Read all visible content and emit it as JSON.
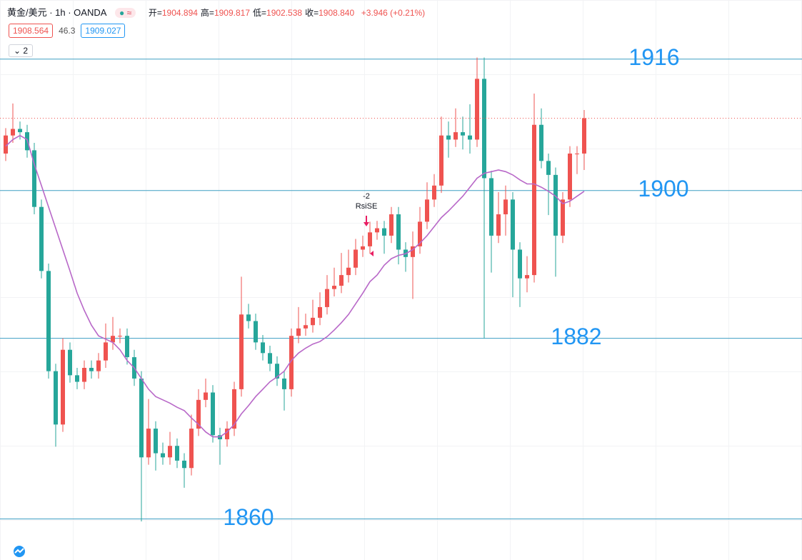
{
  "header": {
    "symbol": "黄金/美元 · 1h · OANDA",
    "ohlc": [
      {
        "label": "开=",
        "value": "1904.894"
      },
      {
        "label": "高=",
        "value": "1909.817"
      },
      {
        "label": "低=",
        "value": "1902.538"
      },
      {
        "label": "收=",
        "value": "1908.840"
      }
    ],
    "change": "+3.946 (+0.21%)",
    "bid": "1908.564",
    "spread": "46.3",
    "ask": "1909.027",
    "indicator_count": "2"
  },
  "chart_data": {
    "type": "candlestick",
    "ylim": [
      1855,
      1923.2
    ],
    "up_color": "#ef5350",
    "down_color": "#26a69a",
    "open": [
      1904.5,
      1906.7,
      1907.5,
      1907.1,
      1904.9,
      1898.0,
      1890.2,
      1878.0,
      1871.5,
      1880.6,
      1877.5,
      1876.7,
      1878.4,
      1878.0,
      1879.3,
      1881.5,
      1882.3,
      1882.3,
      1879.7,
      1877.1,
      1867.5,
      1871.0,
      1868.0,
      1867.5,
      1868.9,
      1867.1,
      1866.2,
      1871.0,
      1874.5,
      1875.4,
      1870.2,
      1869.7,
      1871.0,
      1875.8,
      1884.9,
      1884.1,
      1881.5,
      1880.2,
      1878.9,
      1877.1,
      1875.8,
      1882.3,
      1883.2,
      1883.6,
      1884.5,
      1885.8,
      1888.0,
      1888.4,
      1889.7,
      1890.6,
      1892.8,
      1893.2,
      1894.9,
      1895.4,
      1894.5,
      1897.1,
      1892.8,
      1891.9,
      1893.2,
      1896.2,
      1898.9,
      1900.6,
      1906.7,
      1906.2,
      1907.1,
      1906.7,
      1906.2,
      1913.6,
      1901.5,
      1894.5,
      1897.1,
      1898.9,
      1892.8,
      1889.3,
      1889.7,
      1908.0,
      1903.6,
      1901.9,
      1894.5,
      1898.9,
      1904.5,
      1904.5
    ],
    "high": [
      1907.6,
      1910.6,
      1908.4,
      1908.0,
      1905.8,
      1898.9,
      1891.1,
      1878.9,
      1882.0,
      1881.5,
      1878.4,
      1879.3,
      1879.3,
      1880.2,
      1883.8,
      1884.6,
      1883.2,
      1883.2,
      1880.6,
      1878.0,
      1874.6,
      1871.9,
      1869.3,
      1870.6,
      1869.8,
      1868.0,
      1872.7,
      1875.8,
      1877.1,
      1876.3,
      1871.1,
      1871.9,
      1876.7,
      1889.5,
      1886.2,
      1885.0,
      1882.4,
      1881.1,
      1879.8,
      1878.0,
      1883.2,
      1885.8,
      1885.0,
      1886.7,
      1887.6,
      1889.7,
      1890.6,
      1892.4,
      1892.8,
      1894.1,
      1894.5,
      1896.2,
      1896.3,
      1896.3,
      1898.0,
      1898.0,
      1893.7,
      1895.0,
      1898.0,
      1901.0,
      1902.0,
      1909.0,
      1908.4,
      1910.0,
      1909.0,
      1910.5,
      1916.2,
      1916.2,
      1902.4,
      1899.8,
      1900.6,
      1899.8,
      1893.7,
      1892.0,
      1911.8,
      1910.0,
      1904.5,
      1902.8,
      1899.8,
      1905.4,
      1905.4,
      1909.8
    ],
    "low": [
      1903.6,
      1905.8,
      1906.2,
      1904.0,
      1897.1,
      1889.3,
      1877.1,
      1868.8,
      1870.6,
      1876.6,
      1875.8,
      1875.8,
      1877.1,
      1877.1,
      1878.4,
      1880.6,
      1881.4,
      1878.8,
      1876.2,
      1859.7,
      1866.6,
      1865.9,
      1866.6,
      1866.6,
      1866.2,
      1863.8,
      1865.3,
      1870.1,
      1873.6,
      1869.3,
      1866.6,
      1868.8,
      1870.1,
      1874.9,
      1883.2,
      1880.6,
      1879.3,
      1878.0,
      1876.2,
      1873.2,
      1874.9,
      1881.4,
      1882.3,
      1882.7,
      1883.6,
      1884.9,
      1887.1,
      1887.5,
      1888.8,
      1889.7,
      1891.9,
      1892.3,
      1894.0,
      1892.3,
      1893.6,
      1891.0,
      1890.1,
      1886.8,
      1892.3,
      1895.3,
      1898.0,
      1899.7,
      1904.0,
      1905.3,
      1905.0,
      1904.5,
      1905.3,
      1882.0,
      1890.0,
      1893.6,
      1894.5,
      1887.0,
      1885.8,
      1887.6,
      1888.8,
      1902.7,
      1897.0,
      1889.5,
      1893.6,
      1898.0,
      1902.0,
      1902.5
    ],
    "close": [
      1906.7,
      1907.5,
      1907.1,
      1904.9,
      1898.0,
      1890.2,
      1878.0,
      1871.5,
      1880.6,
      1877.5,
      1876.7,
      1878.4,
      1878.0,
      1879.3,
      1881.5,
      1882.3,
      1882.3,
      1879.7,
      1877.1,
      1867.5,
      1871.0,
      1868.0,
      1867.5,
      1868.9,
      1867.1,
      1866.2,
      1871.0,
      1874.5,
      1875.4,
      1870.2,
      1869.7,
      1871.0,
      1875.8,
      1884.9,
      1884.1,
      1881.5,
      1880.2,
      1878.9,
      1877.1,
      1875.8,
      1882.3,
      1883.2,
      1883.6,
      1884.5,
      1885.8,
      1888.0,
      1888.4,
      1889.7,
      1890.6,
      1892.8,
      1893.2,
      1894.9,
      1895.4,
      1894.5,
      1897.1,
      1892.8,
      1891.9,
      1893.2,
      1896.2,
      1898.9,
      1900.6,
      1906.7,
      1906.2,
      1907.1,
      1906.7,
      1906.2,
      1913.6,
      1901.5,
      1894.5,
      1897.1,
      1898.9,
      1892.8,
      1889.3,
      1889.7,
      1908.0,
      1903.6,
      1901.9,
      1894.5,
      1898.9,
      1904.5,
      1904.5,
      1908.8
    ],
    "ma": {
      "color": "#b868c8",
      "values": [
        1905.4,
        1906.2,
        1906.7,
        1906.2,
        1903.2,
        1900.6,
        1898.0,
        1895.4,
        1892.8,
        1890.2,
        1887.5,
        1885.4,
        1883.6,
        1882.3,
        1881.9,
        1881.5,
        1880.6,
        1879.3,
        1878.4,
        1877.1,
        1875.8,
        1874.9,
        1874.5,
        1874.1,
        1873.6,
        1873.2,
        1872.3,
        1871.5,
        1870.6,
        1870.0,
        1870.0,
        1870.6,
        1871.5,
        1872.8,
        1873.8,
        1874.9,
        1875.8,
        1876.7,
        1877.3,
        1878.0,
        1879.3,
        1880.2,
        1880.8,
        1881.3,
        1881.6,
        1882.2,
        1883.0,
        1883.9,
        1884.9,
        1886.2,
        1887.5,
        1888.9,
        1889.7,
        1890.9,
        1891.7,
        1892.1,
        1892.3,
        1892.8,
        1893.6,
        1894.5,
        1895.6,
        1896.7,
        1897.5,
        1898.4,
        1899.3,
        1900.4,
        1901.5,
        1902.1,
        1902.3,
        1902.5,
        1902.3,
        1901.9,
        1901.3,
        1900.8,
        1900.8,
        1900.4,
        1899.9,
        1899.3,
        1898.4,
        1898.7,
        1899.3,
        1899.9
      ]
    },
    "levels": [
      1916,
      1900,
      1882,
      1860
    ],
    "level_color": "#3f9fc4",
    "level_label_color": "#2196f3",
    "signal": {
      "value": -2,
      "label": "RsiSE"
    }
  }
}
